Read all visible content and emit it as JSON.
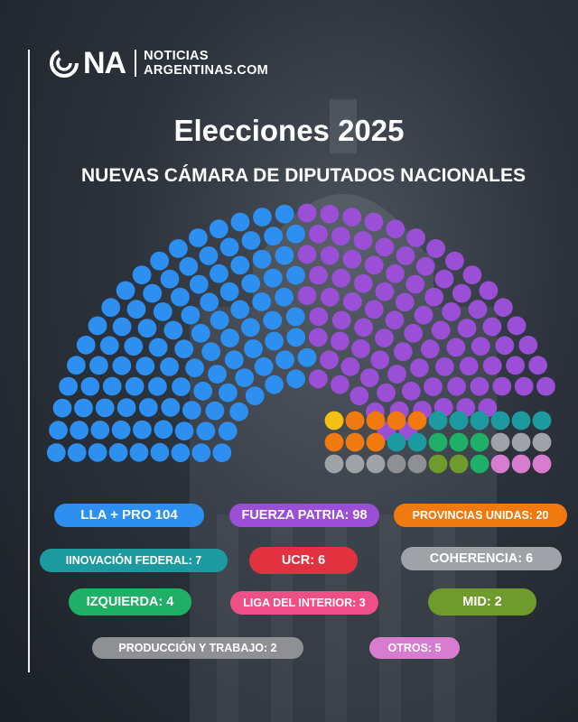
{
  "header": {
    "logo_na": "NA",
    "logo_line1": "NOTICIAS",
    "logo_line2": "ARGENTINAS.COM"
  },
  "title": "Elecciones 2025",
  "subtitle": "NUEVAS CÁMARA DE DIPUTADOS NACIONALES",
  "chart_data": {
    "type": "parliament",
    "total_seats": 257,
    "series": [
      {
        "name": "LLA + PRO",
        "value": 104,
        "label": "LLA + PRO 104",
        "color": "#2d8ff0"
      },
      {
        "name": "FUERZA PATRIA",
        "value": 98,
        "label": "FUERZA PATRIA: 98",
        "color": "#9a4fd6"
      },
      {
        "name": "PROVINCIAS UNIDAS",
        "value": 20,
        "label": "PROVINCIAS UNIDAS: 20",
        "color": "#f07a10"
      },
      {
        "name": "IINOVACIÓN FEDERAL",
        "value": 7,
        "label": "IINOVACIÓN FEDERAL: 7",
        "color": "#1d9aa0"
      },
      {
        "name": "UCR",
        "value": 6,
        "label": "UCR: 6",
        "color": "#e23240"
      },
      {
        "name": "COHERENCIA",
        "value": 6,
        "label": "COHERENCIA: 6",
        "color": "#9fa2a6"
      },
      {
        "name": "IZQUIERDA",
        "value": 4,
        "label": "IZQUIERDA: 4",
        "color": "#1fb067"
      },
      {
        "name": "LIGA DEL INTERIOR",
        "value": 3,
        "label": "LIGA DEL INTERIOR: 3",
        "color": "#ee4f86"
      },
      {
        "name": "MID",
        "value": 2,
        "label": "MID: 2",
        "color": "#6f9a2c"
      },
      {
        "name": "PRODUCCIÓN Y TRABAJO",
        "value": 2,
        "label": "PRODUCCIÓN Y TRABAJO: 2",
        "color": "#8e9094"
      },
      {
        "name": "OTROS",
        "value": 5,
        "label": "OTROS: 5",
        "color": "#d87cd0"
      }
    ],
    "seat_colors_extra": {
      "yellow": "#f5c013"
    }
  }
}
